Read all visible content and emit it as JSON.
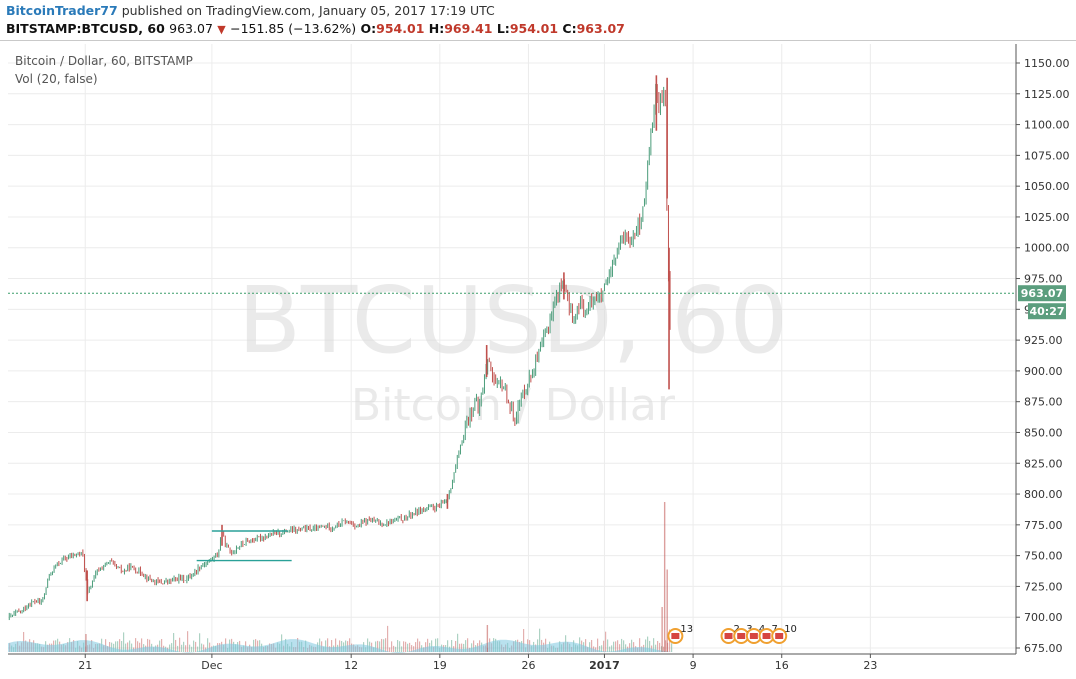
{
  "header": {
    "author": "BitcoinTrader77",
    "published_text": "published on TradingView.com, January 05, 2017 17:19 UTC",
    "symbol": "BITSTAMP:BTCUSD, 60",
    "last": "963.07",
    "change": "−151.85 (−13.62%)",
    "open_label": "O:",
    "open": "954.01",
    "high_label": "H:",
    "high": "969.41",
    "low_label": "L:",
    "low": "954.01",
    "close_label": "C:",
    "close": "963.07"
  },
  "legend": {
    "series_title": "Bitcoin / Dollar, 60, BITSTAMP",
    "volume_title": "Vol (20, false)"
  },
  "watermark": {
    "main": "BTCUSD, 60",
    "sub": "Bitcoin / Dollar"
  },
  "price_tags": {
    "last_price": "963.07",
    "countdown": "40:27"
  },
  "colors": {
    "up": "#4a9c7a",
    "down": "#c0504d",
    "grid": "#ececec",
    "axis": "#555555",
    "volume": "#7fc8e0",
    "tag": "#5b9e7e",
    "last_line": "#3c9e6a"
  },
  "chart_data": {
    "type": "candlestick",
    "y_unit": "USD",
    "ylim": [
      675,
      1150
    ],
    "y_ticks": [
      675,
      700,
      725,
      750,
      775,
      800,
      825,
      850,
      875,
      900,
      925,
      950,
      975,
      1000,
      1025,
      1050,
      1075,
      1100,
      1125,
      1150
    ],
    "y_tick_labels": [
      "675.00",
      "700.00",
      "725.00",
      "750.00",
      "775.00",
      "800.00",
      "825.00",
      "850.00",
      "875.00",
      "900.00",
      "925.00",
      "950.00",
      "975.00",
      "1000.00",
      "1025.00",
      "1050.00",
      "1075.00",
      "1100.00",
      "1125.00",
      "1150.00"
    ],
    "x_ticks": [
      {
        "day": 21,
        "label": "21",
        "bold": false
      },
      {
        "day": 31,
        "label": "Dec",
        "bold": false
      },
      {
        "day": 42,
        "label": "12",
        "bold": false
      },
      {
        "day": 49,
        "label": "19",
        "bold": false
      },
      {
        "day": 56,
        "label": "26",
        "bold": false
      },
      {
        "day": 62,
        "label": "2017",
        "bold": true
      },
      {
        "day": 69,
        "label": "9",
        "bold": false
      },
      {
        "day": 76,
        "label": "16",
        "bold": false
      },
      {
        "day": 83,
        "label": "23",
        "bold": false
      }
    ],
    "x_domain_days": [
      14.9,
      94.5
    ],
    "last_price": 963.07,
    "path": [
      [
        15.0,
        700
      ],
      [
        15.5,
        703
      ],
      [
        16.0,
        705
      ],
      [
        16.5,
        710
      ],
      [
        17.0,
        713
      ],
      [
        17.5,
        712
      ],
      [
        17.8,
        718
      ],
      [
        18.0,
        730
      ],
      [
        18.5,
        740
      ],
      [
        19.0,
        745
      ],
      [
        19.5,
        748
      ],
      [
        20.0,
        750
      ],
      [
        20.5,
        752
      ],
      [
        20.8,
        751
      ],
      [
        21.0,
        735
      ],
      [
        21.2,
        718
      ],
      [
        21.5,
        728
      ],
      [
        22.0,
        738
      ],
      [
        22.5,
        742
      ],
      [
        23.0,
        745
      ],
      [
        23.5,
        740
      ],
      [
        24.0,
        737
      ],
      [
        24.5,
        741
      ],
      [
        25.0,
        738
      ],
      [
        25.5,
        736
      ],
      [
        26.0,
        731
      ],
      [
        26.5,
        729
      ],
      [
        27.0,
        728
      ],
      [
        27.5,
        729
      ],
      [
        28.0,
        730
      ],
      [
        28.5,
        732
      ],
      [
        29.0,
        731
      ],
      [
        29.5,
        735
      ],
      [
        30.0,
        741
      ],
      [
        30.5,
        744
      ],
      [
        31.0,
        747
      ],
      [
        31.5,
        752
      ],
      [
        31.8,
        770
      ],
      [
        32.0,
        760
      ],
      [
        32.5,
        752
      ],
      [
        33.0,
        757
      ],
      [
        33.5,
        760
      ],
      [
        34.0,
        762
      ],
      [
        35.0,
        765
      ],
      [
        36.0,
        768
      ],
      [
        37.0,
        770
      ],
      [
        38.0,
        771
      ],
      [
        38.5,
        772
      ],
      [
        39.0,
        771
      ],
      [
        40.0,
        774
      ],
      [
        40.5,
        773
      ],
      [
        41.0,
        775
      ],
      [
        41.5,
        778
      ],
      [
        42.0,
        776
      ],
      [
        42.5,
        774
      ],
      [
        43.0,
        777
      ],
      [
        43.5,
        779
      ],
      [
        44.0,
        777
      ],
      [
        44.5,
        776
      ],
      [
        45.0,
        777
      ],
      [
        45.5,
        779
      ],
      [
        46.0,
        780
      ],
      [
        46.5,
        782
      ],
      [
        47.0,
        785
      ],
      [
        47.5,
        787
      ],
      [
        48.0,
        788
      ],
      [
        48.5,
        789
      ],
      [
        49.0,
        790
      ],
      [
        49.5,
        795
      ],
      [
        50.0,
        810
      ],
      [
        50.3,
        825
      ],
      [
        50.7,
        840
      ],
      [
        51.0,
        855
      ],
      [
        51.4,
        865
      ],
      [
        51.8,
        875
      ],
      [
        52.0,
        868
      ],
      [
        52.3,
        880
      ],
      [
        52.6,
        900
      ],
      [
        52.9,
        910
      ],
      [
        53.2,
        895
      ],
      [
        53.5,
        885
      ],
      [
        53.8,
        890
      ],
      [
        54.0,
        888
      ],
      [
        54.3,
        880
      ],
      [
        54.6,
        868
      ],
      [
        54.9,
        862
      ],
      [
        55.2,
        870
      ],
      [
        55.5,
        880
      ],
      [
        55.8,
        888
      ],
      [
        56.0,
        892
      ],
      [
        56.3,
        900
      ],
      [
        56.6,
        908
      ],
      [
        56.9,
        915
      ],
      [
        57.2,
        925
      ],
      [
        57.5,
        935
      ],
      [
        57.8,
        945
      ],
      [
        58.0,
        955
      ],
      [
        58.2,
        960
      ],
      [
        58.5,
        968
      ],
      [
        58.8,
        972
      ],
      [
        59.0,
        960
      ],
      [
        59.3,
        950
      ],
      [
        59.6,
        940
      ],
      [
        59.9,
        950
      ],
      [
        60.2,
        955
      ],
      [
        60.5,
        948
      ],
      [
        60.8,
        952
      ],
      [
        61.0,
        958
      ],
      [
        61.3,
        962
      ],
      [
        61.6,
        958
      ],
      [
        61.9,
        964
      ],
      [
        62.2,
        970
      ],
      [
        62.5,
        978
      ],
      [
        62.8,
        990
      ],
      [
        63.1,
        1000
      ],
      [
        63.4,
        1005
      ],
      [
        63.7,
        1010
      ],
      [
        64.0,
        1008
      ],
      [
        64.3,
        1012
      ],
      [
        64.6,
        1018
      ],
      [
        64.9,
        1020
      ],
      [
        65.1,
        1035
      ],
      [
        65.3,
        1050
      ],
      [
        65.5,
        1080
      ],
      [
        65.7,
        1095
      ],
      [
        65.9,
        1110
      ],
      [
        66.0,
        1125
      ],
      [
        66.1,
        1135
      ],
      [
        66.2,
        1122
      ],
      [
        66.3,
        1105
      ],
      [
        66.4,
        1120
      ],
      [
        66.5,
        1128
      ],
      [
        66.6,
        1110
      ],
      [
        66.7,
        1130
      ],
      [
        66.8,
        1115
      ],
      [
        66.9,
        1050
      ],
      [
        67.0,
        995
      ],
      [
        67.1,
        960
      ],
      [
        67.2,
        935
      ],
      [
        67.3,
        963
      ]
    ],
    "candle_spikes": [
      {
        "day": 21.15,
        "high": 738,
        "low": 713
      },
      {
        "day": 31.8,
        "high": 775,
        "low": 758
      },
      {
        "day": 49.6,
        "high": 800,
        "low": 788
      },
      {
        "day": 52.7,
        "high": 921,
        "low": 895
      },
      {
        "day": 58.8,
        "high": 980,
        "low": 958
      },
      {
        "day": 66.1,
        "high": 1140,
        "low": 1095
      },
      {
        "day": 66.95,
        "high": 1138,
        "low": 1040
      },
      {
        "day": 67.1,
        "high": 1000,
        "low": 885
      }
    ],
    "support_lines": [
      {
        "price": 770,
        "from_day": 31.0,
        "to_day": 37.0
      },
      {
        "price": 746,
        "from_day": 29.8,
        "to_day": 37.3
      }
    ],
    "volume_spikes": [
      {
        "day": 66.7,
        "relative": 1.0
      },
      {
        "day": 66.9,
        "relative": 0.55
      },
      {
        "day": 66.5,
        "relative": 0.3
      },
      {
        "day": 52.7,
        "relative": 0.18
      },
      {
        "day": 21.0,
        "relative": 0.12
      }
    ],
    "events": [
      {
        "day": 67.6,
        "label": "13"
      },
      {
        "day": 71.8,
        "label": "2"
      },
      {
        "day": 72.8,
        "label": "3"
      },
      {
        "day": 73.8,
        "label": "4"
      },
      {
        "day": 74.8,
        "label": "7"
      },
      {
        "day": 75.8,
        "label": "10"
      }
    ]
  }
}
